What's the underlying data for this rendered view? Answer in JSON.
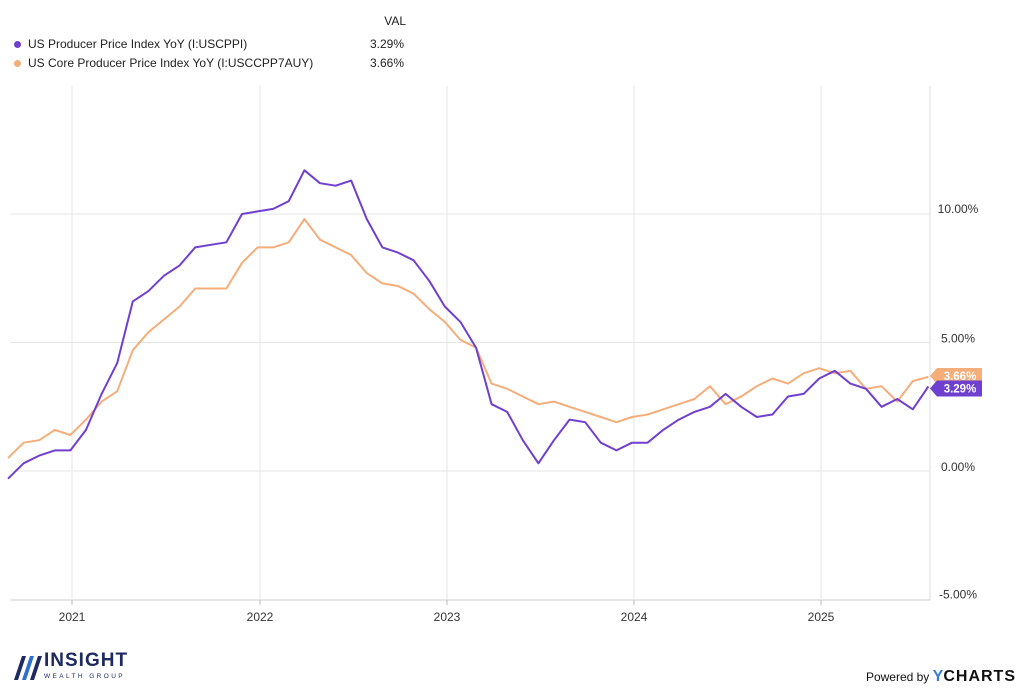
{
  "legend": {
    "header": "VAL",
    "items": [
      {
        "name": "US Producer Price Index YoY (I:USCPPI)",
        "value": "3.29%"
      },
      {
        "name": "US Core Producer Price Index YoY (I:USCCPP7AUY)",
        "value": "3.66%"
      }
    ]
  },
  "branding": {
    "logo_text": "INSIGHT",
    "logo_tagline": "WEALTH GROUP",
    "powered_by": "Powered by",
    "provider_y": "Y",
    "provider_rest": "CHARTS"
  },
  "colors": {
    "ppi": "#6f3fd0",
    "core": "#f5ad7a",
    "grid": "#e6e6e6"
  },
  "chart_data": {
    "type": "line",
    "x_ticks": [
      "2021",
      "2022",
      "2023",
      "2024",
      "2025"
    ],
    "y_ticks": [
      "10.00%",
      "5.00%",
      "0.00%",
      "-5.00%"
    ],
    "y_tick_values": [
      10,
      5,
      0,
      -5
    ],
    "ylim": [
      -5,
      15
    ],
    "x_start": "2020-09",
    "grid": true,
    "series": [
      {
        "name": "US Producer Price Index YoY (I:USCPPI)",
        "end_label": "3.29%",
        "values": [
          -0.3,
          0.3,
          0.6,
          0.8,
          0.8,
          1.6,
          3.0,
          4.2,
          6.6,
          7.0,
          7.6,
          8.0,
          8.7,
          8.8,
          8.9,
          10.0,
          10.1,
          10.2,
          10.5,
          11.7,
          11.2,
          11.1,
          11.3,
          9.8,
          8.7,
          8.5,
          8.2,
          7.4,
          6.4,
          5.8,
          4.8,
          2.6,
          2.3,
          1.2,
          0.3,
          1.2,
          2.0,
          1.9,
          1.1,
          0.8,
          1.1,
          1.1,
          1.6,
          2.0,
          2.3,
          2.5,
          3.0,
          2.5,
          2.1,
          2.2,
          2.9,
          3.0,
          3.6,
          3.9,
          3.4,
          3.2,
          2.5,
          2.8,
          2.4,
          3.29
        ]
      },
      {
        "name": "US Core Producer Price Index YoY (I:USCCPP7AUY)",
        "end_label": "3.66%",
        "values": [
          0.5,
          1.1,
          1.2,
          1.6,
          1.4,
          2.0,
          2.7,
          3.1,
          4.7,
          5.4,
          5.9,
          6.4,
          7.1,
          7.1,
          7.1,
          8.1,
          8.7,
          8.7,
          8.9,
          9.8,
          9.0,
          8.7,
          8.4,
          7.7,
          7.3,
          7.2,
          6.9,
          6.3,
          5.8,
          5.1,
          4.8,
          3.4,
          3.2,
          2.9,
          2.6,
          2.7,
          2.5,
          2.3,
          2.1,
          1.9,
          2.1,
          2.2,
          2.4,
          2.6,
          2.8,
          3.3,
          2.6,
          2.9,
          3.3,
          3.6,
          3.4,
          3.8,
          4.0,
          3.8,
          3.9,
          3.2,
          3.3,
          2.7,
          3.5,
          3.66
        ]
      }
    ]
  }
}
